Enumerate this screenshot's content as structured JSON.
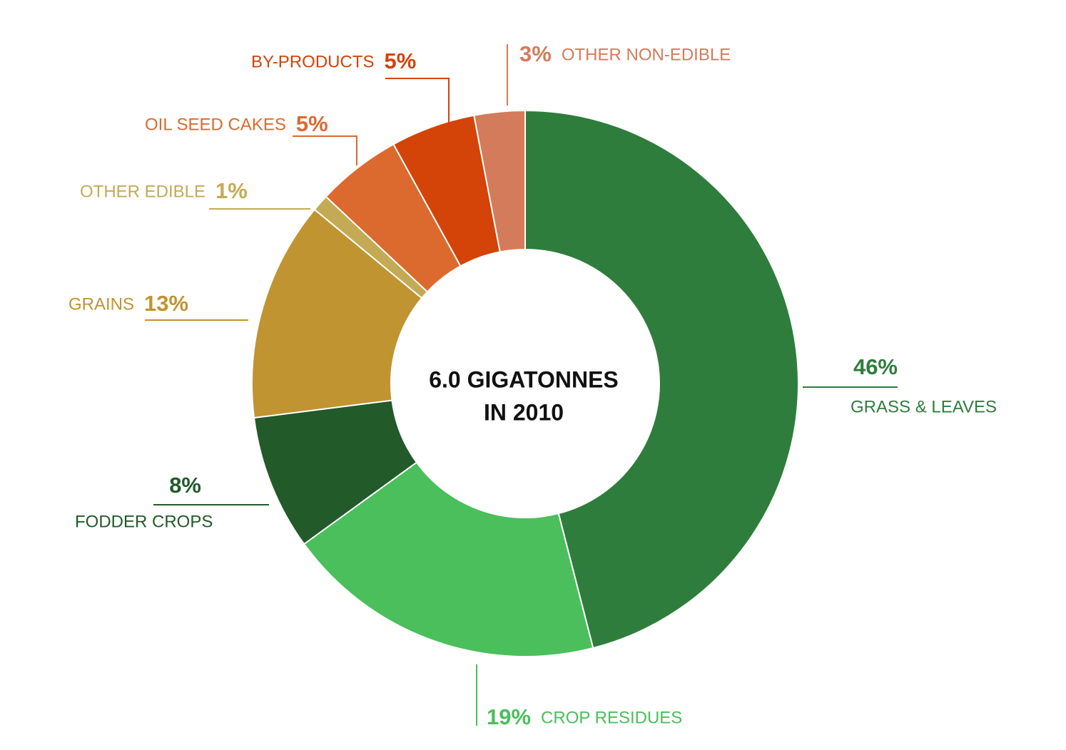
{
  "chart_data": {
    "type": "pie",
    "donut": true,
    "center_label": [
      "6.0 GIGATONNES",
      "IN 2010"
    ],
    "categories": [
      "GRASS & LEAVES",
      "CROP RESIDUES",
      "FODDER CROPS",
      "GRAINS",
      "OTHER EDIBLE",
      "OIL SEED CAKES",
      "BY-PRODUCTS",
      "OTHER NON-EDIBLE"
    ],
    "values": [
      46,
      19,
      8,
      13,
      1,
      5,
      5,
      3
    ],
    "value_labels": [
      "46%",
      "19%",
      "8%",
      "13%",
      "1%",
      "5%",
      "5%",
      "3%"
    ],
    "colors": [
      "#2e7d3c",
      "#4abf5b",
      "#225a29",
      "#c09431",
      "#c4aa54",
      "#dc6a2e",
      "#d44307",
      "#d47b5b"
    ]
  }
}
